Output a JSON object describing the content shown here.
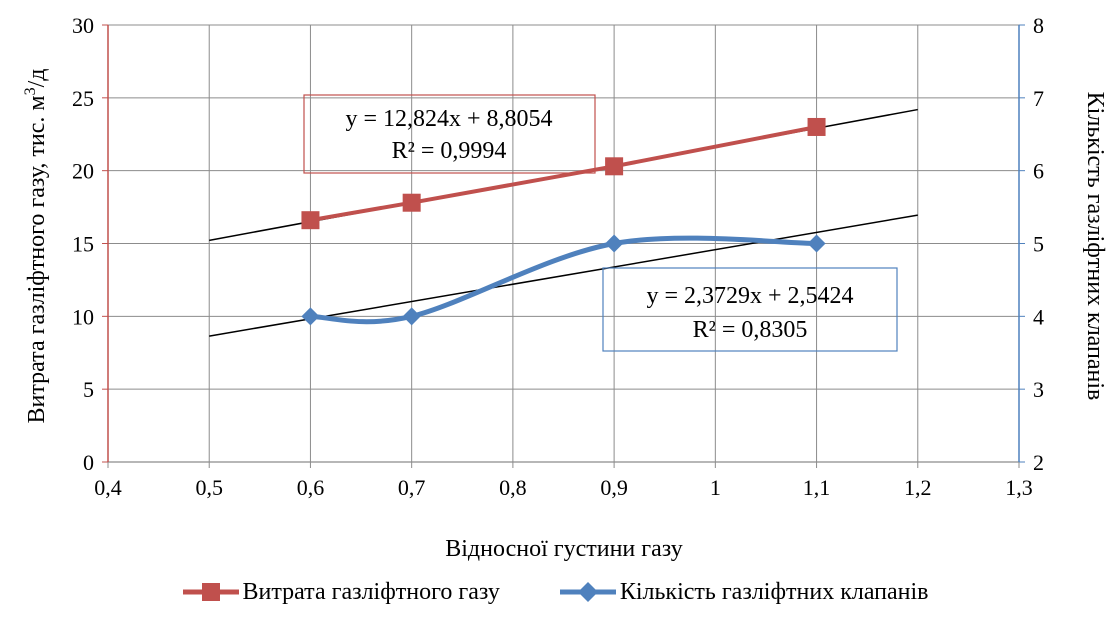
{
  "chart_data": {
    "type": "line",
    "xlabel": "Відносної густини газу",
    "ylabel_left": "Витрата газліфтного газу, тис. м³/д",
    "ylabel_left_main": "Витрата газліфтного газу, тис. м",
    "ylabel_left_sup": "3",
    "ylabel_left_tail": "/д",
    "ylabel_right": "Кількість газліфтних клапанів",
    "xlim": [
      0.4,
      1.3
    ],
    "ylim_left": [
      0,
      30
    ],
    "ylim_right": [
      2,
      8
    ],
    "x_ticks": [
      "0,4",
      "0,5",
      "0,6",
      "0,7",
      "0,8",
      "0,9",
      "1",
      "1,1",
      "1,2",
      "1,3"
    ],
    "y_left_ticks": [
      "0",
      "5",
      "10",
      "15",
      "20",
      "25",
      "30"
    ],
    "y_right_ticks": [
      "2",
      "3",
      "4",
      "5",
      "6",
      "7",
      "8"
    ],
    "grid": true,
    "legend_position": "bottom",
    "series": [
      {
        "name": "Витрата газліфтного газу",
        "axis": "left",
        "color": "#C0504D",
        "marker": "square",
        "x": [
          0.6,
          0.7,
          0.9,
          1.1
        ],
        "y": [
          16.6,
          17.8,
          20.3,
          23.0
        ],
        "trendline": {
          "slope": 12.824,
          "intercept": 8.8054,
          "x_range": [
            0.5,
            1.2
          ]
        },
        "equation": "y = 12,824x + 8,8054",
        "r2": "R² = 0,9994"
      },
      {
        "name": "Кількість газліфтних клапанів",
        "axis": "right",
        "color": "#4F81BD",
        "marker": "diamond",
        "x": [
          0.6,
          0.7,
          0.9,
          1.1
        ],
        "y": [
          4,
          4,
          5,
          5
        ],
        "trendline": {
          "slope": 2.3729,
          "intercept": 2.5424,
          "x_range": [
            0.5,
            1.2
          ]
        },
        "equation": "y = 2,3729x + 2,5424",
        "r2": "R² = 0,8305"
      }
    ]
  }
}
